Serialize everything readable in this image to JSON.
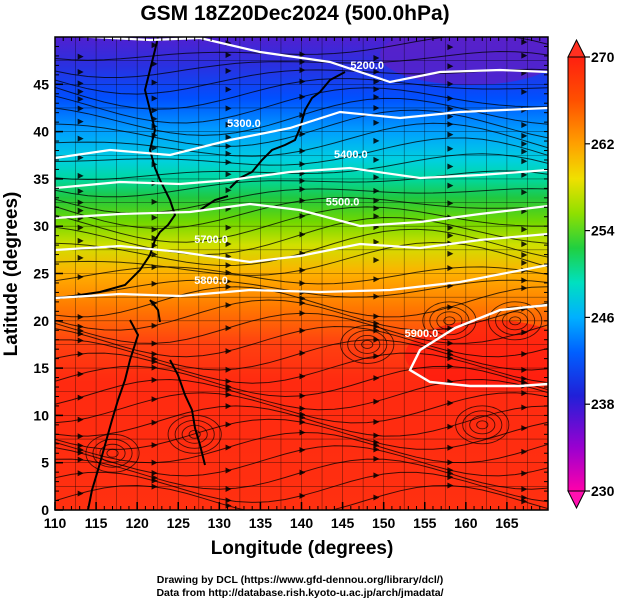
{
  "title": "GSM 18Z20Dec2024 (500.0hPa)",
  "axes": {
    "xlabel": "Longitude (degrees)",
    "ylabel": "Latitude  (degrees)",
    "xlim": [
      110,
      170
    ],
    "ylim": [
      0,
      50
    ],
    "xticks": [
      "110",
      "115",
      "120",
      "125",
      "130",
      "135",
      "140",
      "145",
      "150",
      "155",
      "160",
      "165"
    ],
    "yticks": [
      "0",
      "5",
      "10",
      "15",
      "20",
      "25",
      "30",
      "35",
      "40",
      "45"
    ],
    "xtick_values": [
      110,
      115,
      120,
      125,
      130,
      135,
      140,
      145,
      150,
      155,
      160,
      165
    ],
    "ytick_values": [
      0,
      5,
      10,
      15,
      20,
      25,
      30,
      35,
      40,
      45
    ]
  },
  "colorbar": {
    "min": 230,
    "max": 270,
    "labels": [
      "270",
      "262",
      "254",
      "246",
      "238",
      "230"
    ],
    "label_values": [
      270,
      262,
      254,
      246,
      238,
      230
    ],
    "colors": [
      "#ff00aa",
      "#9a00d0",
      "#3a10d0",
      "#0040ff",
      "#0090ff",
      "#00d0e0",
      "#00e0a0",
      "#20d040",
      "#80e000",
      "#e8e000",
      "#ffa000",
      "#ff5000",
      "#ff2000"
    ]
  },
  "contours": [
    {
      "label": "5200.0",
      "label_lon": 148,
      "label_lat": 46.6
    },
    {
      "label": "5300.0",
      "label_lon": 133,
      "label_lat": 40.5
    },
    {
      "label": "5400.0",
      "label_lon": 146,
      "label_lat": 37.2
    },
    {
      "label": "5500.0",
      "label_lon": 145,
      "label_lat": 32.2
    },
    {
      "label": "5700.0",
      "label_lon": 129,
      "label_lat": 28.2
    },
    {
      "label": "5800.0",
      "label_lon": 129,
      "label_lat": 23.9
    },
    {
      "label": "5900.0",
      "label_lon": 154.6,
      "label_lat": 18.3
    }
  ],
  "credits": {
    "line1": "Drawing by DCL (https://www.gfd-dennou.org/library/dcl/)",
    "line2": "Data from http://database.rish.kyoto-u.ac.jp/arch/jmadata/"
  }
}
